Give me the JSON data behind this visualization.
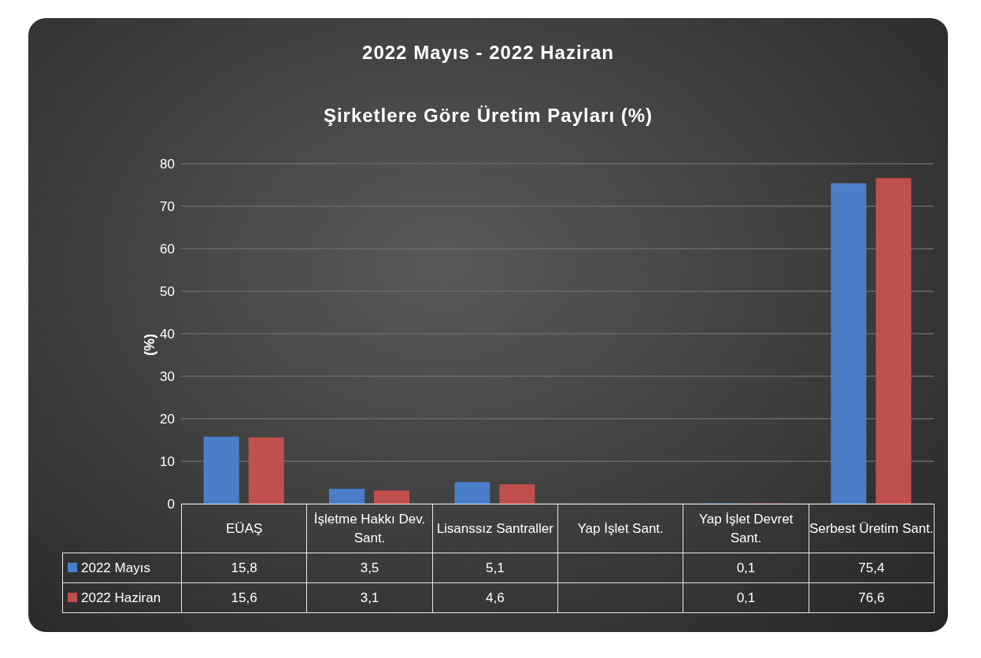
{
  "chart_data": {
    "type": "bar",
    "title": "2022 Mayıs - 2022 Haziran",
    "subtitle": "Şirketlere Göre Üretim Payları (%)",
    "ylabel": "(%)",
    "categories": [
      "EÜAŞ",
      "İşletme Hakkı Dev. Sant.",
      "Lisanssız Santraller",
      "Yap İşlet Sant.",
      "Yap İşlet Devret Sant.",
      "Serbest Üretim Sant."
    ],
    "series": [
      {
        "name": "2022 Mayıs",
        "color": "#4a7ec8",
        "values": [
          15.8,
          3.5,
          5.1,
          null,
          0.1,
          75.4
        ],
        "value_labels": [
          "15,8",
          "3,5",
          "5,1",
          null,
          "0,1",
          "75,4"
        ]
      },
      {
        "name": "2022 Haziran",
        "color": "#c0504d",
        "values": [
          15.6,
          3.1,
          4.6,
          null,
          0.1,
          76.6
        ],
        "value_labels": [
          "15,6",
          "3,1",
          "4,6",
          null,
          "0,1",
          "76,6"
        ]
      }
    ],
    "ylim": [
      0,
      80
    ],
    "yticks": [
      0,
      10,
      20,
      30,
      40,
      50,
      60,
      70,
      80
    ],
    "grid": "y",
    "legend": "bottom"
  }
}
